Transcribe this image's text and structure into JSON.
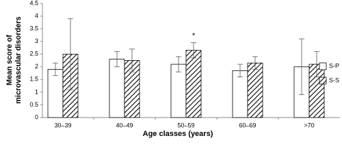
{
  "chart_data": {
    "type": "bar",
    "ylabel": [
      "Mean score of",
      "microvascular disorders"
    ],
    "xlabel": "Age classes (years)",
    "categories": [
      "30–39",
      "40–49",
      "50–59",
      "60–69",
      ">70"
    ],
    "series": [
      {
        "name": "S-P",
        "color": "#ffffff",
        "hatch": false,
        "values": [
          1.9,
          2.3,
          2.1,
          1.85,
          2.0
        ],
        "errors": [
          0.25,
          0.3,
          0.3,
          0.25,
          1.1
        ]
      },
      {
        "name": "S-S",
        "color": "#ffffff",
        "hatch": true,
        "values": [
          2.5,
          2.25,
          2.65,
          2.15,
          2.1
        ],
        "errors": [
          1.4,
          0.45,
          0.3,
          0.25,
          0.5
        ]
      }
    ],
    "annotations": [
      {
        "text": "*",
        "category": "50–59",
        "series": "S-S"
      }
    ],
    "ylim": [
      0,
      4.5
    ],
    "yticks": [
      0,
      0.5,
      1,
      1.5,
      2,
      2.5,
      3,
      3.5,
      4,
      4.5
    ],
    "grid": false
  }
}
